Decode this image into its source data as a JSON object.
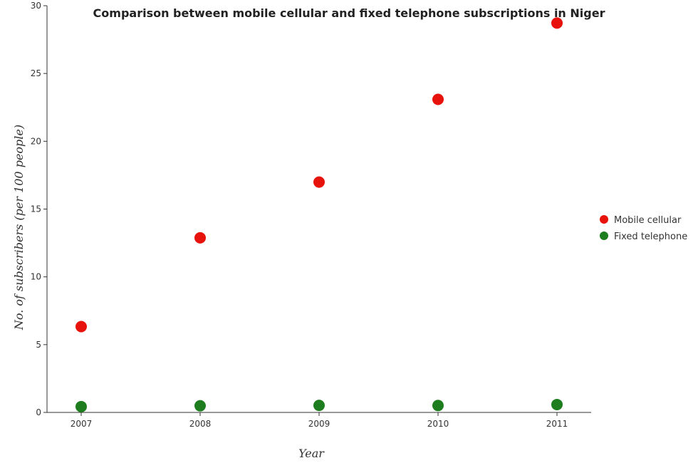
{
  "chart_data": {
    "type": "scatter",
    "title": "Comparison between mobile cellular and fixed telephone subscriptions in Niger",
    "xlabel": "Year",
    "ylabel": "No. of subscribers (per 100 people)",
    "categories": [
      "2007",
      "2008",
      "2009",
      "2010",
      "2011"
    ],
    "y_ticks": [
      "0",
      "5",
      "10",
      "15",
      "20",
      "25",
      "30"
    ],
    "ylim": [
      0,
      30
    ],
    "grid": false,
    "legend_position": "right",
    "series": [
      {
        "name": "Mobile cellular",
        "color": "#e8120c",
        "values": [
          6.33,
          12.88,
          16.99,
          23.09,
          28.72
        ]
      },
      {
        "name": "Fixed telephone",
        "color": "#1e7d1e",
        "values": [
          0.43,
          0.49,
          0.52,
          0.51,
          0.58
        ]
      }
    ]
  }
}
